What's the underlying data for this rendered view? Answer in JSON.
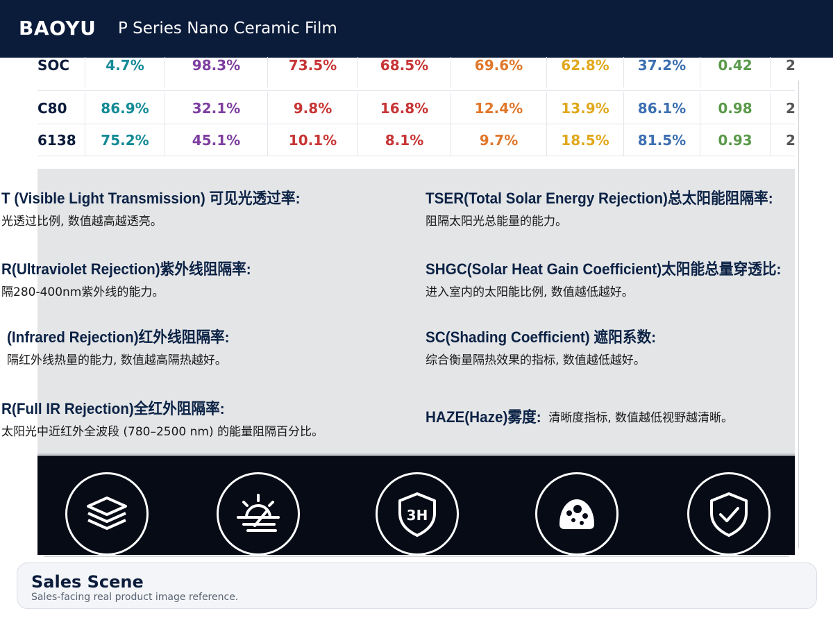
{
  "header": {
    "brand": "BAOYU",
    "title": "P Series Nano Ceramic Film",
    "background": "#0b1b3a"
  },
  "spec_table": {
    "rows": [
      {
        "name": "SOC",
        "values": [
          "4.7%",
          "98.3%",
          "73.5%",
          "68.5%",
          "69.6%",
          "62.8%",
          "37.2%",
          "0.42",
          "2"
        ]
      },
      {
        "name": "C80",
        "values": [
          "86.9%",
          "32.1%",
          "9.8%",
          "16.8%",
          "12.4%",
          "13.9%",
          "86.1%",
          "0.98",
          "2"
        ]
      },
      {
        "name": "6138",
        "values": [
          "75.2%",
          "45.1%",
          "10.1%",
          "8.1%",
          "9.7%",
          "18.5%",
          "81.5%",
          "0.93",
          "2"
        ]
      }
    ],
    "column_colors": [
      "#138a96",
      "#7e3fa0",
      "#c73535",
      "#c73535",
      "#e0772a",
      "#e0a81c",
      "#3c6fb0",
      "#5a9a4a",
      "#555555"
    ]
  },
  "definitions": {
    "left": [
      {
        "title": "T (Visible Light Transmission) 可见光透过率:",
        "desc": "光透过比例, 数值越高越透亮。"
      },
      {
        "title": "R(Ultraviolet Rejection)紫外线阻隔率:",
        "desc": "隔280-400nm紫外线的能力。"
      },
      {
        "title": "(Infrared Rejection)红外线阻隔率:",
        "desc": "隔红外线热量的能力, 数值越高隔热越好。"
      },
      {
        "title": "R(Full IR Rejection)全红外阻隔率:",
        "desc": "太阳光中近红外全波段 (780–2500 nm) 的能量阻隔百分比。"
      }
    ],
    "right": [
      {
        "title": "TSER(Total Solar Energy Rejection)总太阳能阻隔率:",
        "desc": "阻隔太阳光总能量的能力。"
      },
      {
        "title": "SHGC(Solar Heat Gain Coefficient)太阳能总量穿透比:",
        "desc": "进入室内的太阳能比例, 数值越低越好。"
      },
      {
        "title": "SC(Shading Coefficient) 遮阳系数:",
        "desc": "综合衡量隔热效果的指标, 数值越低越好。"
      },
      {
        "title": "HAZE(Haze)雾度:",
        "desc": "清晰度指标, 数值越低视野越清晰。"
      }
    ]
  },
  "feature_icons": [
    {
      "icon": "layers-icon"
    },
    {
      "icon": "sun-horizon-icon"
    },
    {
      "icon": "shield-3h-icon",
      "text": "3H"
    },
    {
      "icon": "stain-dots-icon"
    },
    {
      "icon": "shield-check-icon"
    }
  ],
  "caption": {
    "title": "Sales Scene",
    "subtitle": "Sales-facing real product image reference."
  }
}
